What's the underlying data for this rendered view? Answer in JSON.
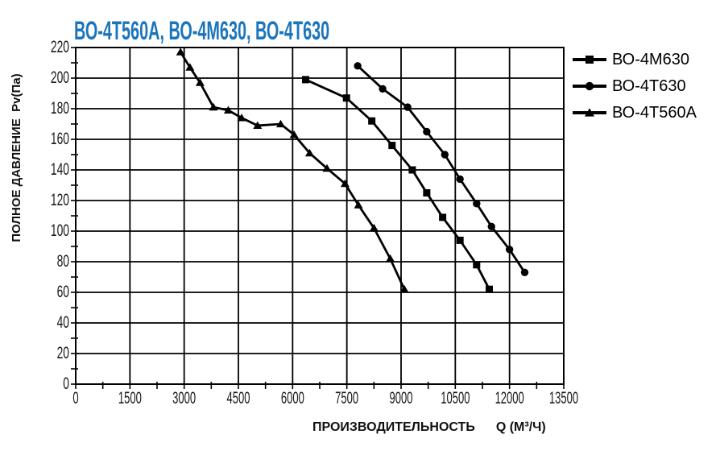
{
  "page": {
    "background": "#ffffff"
  },
  "colors": {
    "title": "#1B75BC",
    "grid": "#000000",
    "series_line": "#000000",
    "tick_text": "#1a1a1a"
  },
  "chart_data": {
    "type": "line",
    "title": "ВО-4Т560А, ВО-4М630, ВО-4Т630",
    "title_color": "#1B75BC",
    "xlabel": "ПРОИЗВОДИТЕЛЬНОСТЬ",
    "xunit": "Q (М³/Ч)",
    "ylabel": "ПОЛНОЕ ДАВЛЕНИЕ  Pv(Па)",
    "xlim": [
      0,
      13500
    ],
    "ylim": [
      0,
      220
    ],
    "x_major_step": 1500,
    "x_minor_step": 750,
    "y_major_step": 20,
    "y_minor_step": 10,
    "x_ticks": [
      0,
      1500,
      3000,
      4500,
      6000,
      7500,
      9000,
      10500,
      12000,
      13500
    ],
    "y_ticks": [
      0,
      20,
      40,
      60,
      80,
      100,
      120,
      140,
      160,
      180,
      200,
      220
    ],
    "grid": "major-both-black",
    "legend_position": "right-outside",
    "series": [
      {
        "name": "ВО-4М630",
        "marker": "square",
        "color": "#000000",
        "points": [
          [
            6360,
            199
          ],
          [
            7490,
            187
          ],
          [
            8190,
            172
          ],
          [
            8750,
            156
          ],
          [
            9310,
            140
          ],
          [
            9710,
            125
          ],
          [
            10150,
            109
          ],
          [
            10630,
            94
          ],
          [
            11090,
            78
          ],
          [
            11440,
            62
          ]
        ]
      },
      {
        "name": "ВО-4Т630",
        "marker": "circle",
        "color": "#000000",
        "points": [
          [
            7800,
            208
          ],
          [
            8490,
            193
          ],
          [
            9180,
            181
          ],
          [
            9710,
            165
          ],
          [
            10210,
            150
          ],
          [
            10630,
            134
          ],
          [
            11090,
            118
          ],
          [
            11500,
            103
          ],
          [
            12000,
            88
          ],
          [
            12420,
            73
          ]
        ]
      },
      {
        "name": "ВО-4Т560А",
        "marker": "triangle",
        "color": "#000000",
        "points": [
          [
            2900,
            217
          ],
          [
            3160,
            207
          ],
          [
            3440,
            197
          ],
          [
            3810,
            181
          ],
          [
            4220,
            179
          ],
          [
            4590,
            174
          ],
          [
            5030,
            169
          ],
          [
            5670,
            170
          ],
          [
            6040,
            163
          ],
          [
            6470,
            151
          ],
          [
            6950,
            141
          ],
          [
            7450,
            131
          ],
          [
            7820,
            117
          ],
          [
            8250,
            102
          ],
          [
            8700,
            82
          ],
          [
            9090,
            62
          ]
        ]
      }
    ]
  }
}
